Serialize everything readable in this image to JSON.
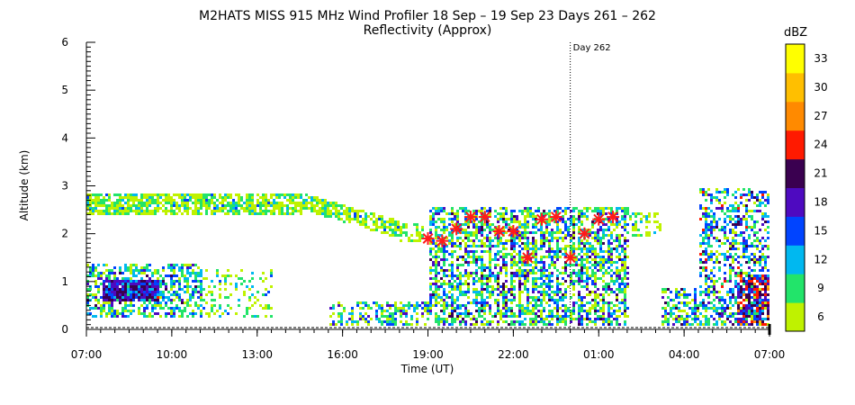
{
  "chart_data": {
    "type": "heatmap",
    "title": "M2HATS MISS 915 MHz Wind Profiler  18 Sep – 19 Sep 23 Days 261 – 262",
    "subtitle": "Reflectivity (Approx)",
    "xlabel": "Time (UT)",
    "ylabel": "Altitude (km)",
    "x_ticks": [
      "07:00",
      "10:00",
      "13:00",
      "16:00",
      "19:00",
      "22:00",
      "01:00",
      "04:00",
      "07:00"
    ],
    "x_range_hours": [
      0,
      24
    ],
    "y_ticks": [
      "0",
      "1",
      "2",
      "3",
      "4",
      "5",
      "6"
    ],
    "ylim": [
      0,
      6
    ],
    "day_marker": {
      "label": "Day 262",
      "hour": 17
    },
    "colorbar": {
      "title": "dBZ",
      "tick_labels": [
        "6",
        "9",
        "12",
        "15",
        "18",
        "21",
        "24",
        "27",
        "30",
        "33"
      ],
      "levels": [
        6,
        9,
        12,
        15,
        18,
        21,
        24,
        27,
        30,
        33
      ],
      "colors": [
        "#bff200",
        "#22e46a",
        "#00b8f0",
        "#0044ff",
        "#4e0ac0",
        "#3a0050",
        "#ff1a00",
        "#ff8a00",
        "#ffbf00",
        "#ffff00"
      ]
    },
    "markers": {
      "color": "#ff1a1a",
      "points": [
        {
          "hour": 12.0,
          "alt": 1.9
        },
        {
          "hour": 12.5,
          "alt": 1.85
        },
        {
          "hour": 13.0,
          "alt": 2.1
        },
        {
          "hour": 13.5,
          "alt": 2.35
        },
        {
          "hour": 14.0,
          "alt": 2.35
        },
        {
          "hour": 14.5,
          "alt": 2.05
        },
        {
          "hour": 15.0,
          "alt": 2.05
        },
        {
          "hour": 15.5,
          "alt": 1.5
        },
        {
          "hour": 16.0,
          "alt": 2.3
        },
        {
          "hour": 16.5,
          "alt": 2.35
        },
        {
          "hour": 17.0,
          "alt": 1.5
        },
        {
          "hour": 17.5,
          "alt": 2.0
        },
        {
          "hour": 18.0,
          "alt": 2.3
        },
        {
          "hour": 18.5,
          "alt": 2.35
        }
      ]
    },
    "grid": false
  }
}
